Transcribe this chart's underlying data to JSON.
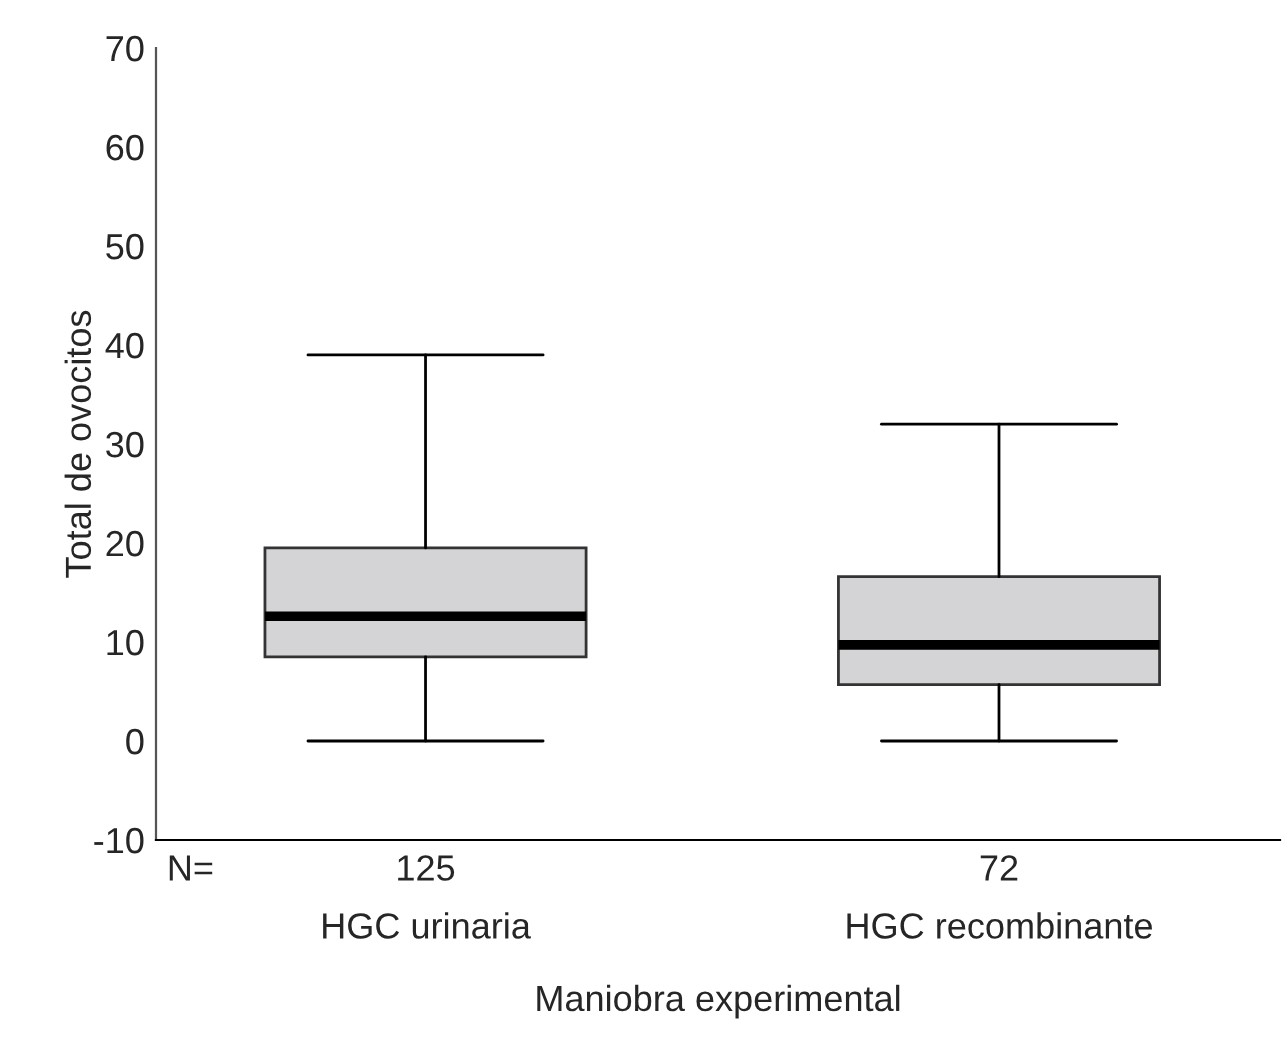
{
  "chart_data": {
    "type": "box",
    "xlabel": "Maniobra experimental",
    "ylabel": "Total de ovocitos",
    "categories": [
      "HGC urinaria",
      "HGC recombinante"
    ],
    "boxes": [
      {
        "low": 0,
        "q1": 8.5,
        "median": 12.6,
        "q3": 19.5,
        "high": 39
      },
      {
        "low": 0,
        "q1": 5.7,
        "median": 9.7,
        "q3": 16.6,
        "high": 32
      }
    ],
    "color": "#d4d4d6",
    "ylim": [
      -10,
      70
    ],
    "yticks": [
      -10,
      0,
      10,
      20,
      30,
      40,
      50,
      60,
      70
    ],
    "annotations": [
      "N=",
      "125",
      "72"
    ],
    "grid": false,
    "legend": false
  }
}
